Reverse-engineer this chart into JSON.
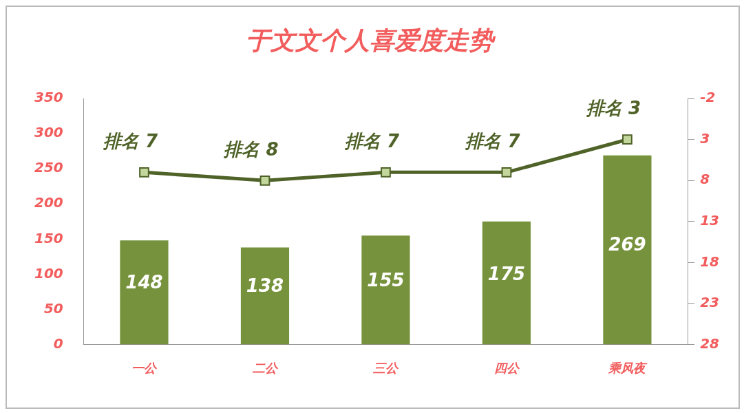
{
  "chart_data": {
    "type": "bar",
    "title": "于文文个人喜爱度走势",
    "categories": [
      "一公",
      "二公",
      "三公",
      "四公",
      "乘风夜"
    ],
    "series": [
      {
        "color": "#76923c",
        "values": [
          148,
          138,
          155,
          175,
          269
        ],
        "value_labels": [
          "148",
          "138",
          "155",
          "175",
          "269"
        ]
      },
      {
        "type": "line",
        "axis": "y2",
        "color": "#4f6228",
        "values": [
          7,
          8,
          7,
          7,
          3
        ],
        "value_labels": [
          "排名 7",
          "排名 8",
          "排名 7",
          "排名 7",
          "排名 3"
        ],
        "marker": "square"
      }
    ],
    "ylim": [
      0,
      350
    ],
    "yticks": [
      0,
      50,
      100,
      150,
      200,
      250,
      300,
      350
    ],
    "y2lim": [
      28,
      -2
    ],
    "y2ticks": [
      -2,
      3,
      8,
      13,
      18,
      23,
      28
    ],
    "grid": false,
    "legend": false
  }
}
